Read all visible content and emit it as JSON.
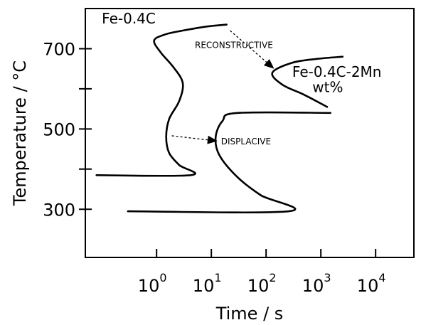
{
  "chart_data": {
    "type": "line",
    "xlabel": "Time / s",
    "ylabel": "Temperature / °C",
    "x_scale": "log",
    "xlim": [
      0.05,
      50000
    ],
    "ylim": [
      180,
      800
    ],
    "x_ticks": [
      {
        "value": 1,
        "base": "10",
        "exp": "0"
      },
      {
        "value": 10,
        "base": "10",
        "exp": "1"
      },
      {
        "value": 100,
        "base": "10",
        "exp": "2"
      },
      {
        "value": 1000,
        "base": "10",
        "exp": "3"
      },
      {
        "value": 10000,
        "base": "10",
        "exp": "4"
      }
    ],
    "y_ticks": [
      300,
      400,
      500,
      600,
      700
    ],
    "y_tick_labels": [
      {
        "value": 300,
        "label": "300"
      },
      {
        "value": 500,
        "label": "500"
      },
      {
        "value": 700,
        "label": "700"
      }
    ],
    "grid": false,
    "series": [
      {
        "name": "Fe-0.4C",
        "points": [
          [
            19,
            760
          ],
          [
            8,
            755
          ],
          [
            3,
            745
          ],
          [
            1.4,
            735
          ],
          [
            0.9,
            720
          ],
          [
            1.2,
            690
          ],
          [
            2.0,
            655
          ],
          [
            3.0,
            615
          ],
          [
            2.6,
            570
          ],
          [
            1.7,
            525
          ],
          [
            1.5,
            480
          ],
          [
            1.7,
            440
          ],
          [
            2.6,
            410
          ],
          [
            4.2,
            385
          ],
          [
            0.08,
            385
          ]
        ]
      },
      {
        "name": "Fe-0.4C-2Mn",
        "points": [
          [
            2500,
            680
          ],
          [
            900,
            675
          ],
          [
            300,
            665
          ],
          [
            130,
            640
          ],
          [
            200,
            610
          ],
          [
            500,
            585
          ],
          [
            1300,
            555
          ]
        ]
      },
      {
        "name": "",
        "points": [
          [
            1500,
            540
          ],
          [
            30,
            540
          ],
          [
            16,
            520
          ],
          [
            12,
            480
          ],
          [
            14,
            435
          ],
          [
            30,
            380
          ],
          [
            80,
            335
          ],
          [
            260,
            295
          ],
          [
            0.3,
            295
          ]
        ]
      }
    ],
    "annotations": [
      {
        "text": "Fe-0.4C",
        "x": 0.1,
        "y": 763
      },
      {
        "text": "RECONSTRUCTIVE",
        "x": 5,
        "y": 702
      },
      {
        "text": "Fe-0.4C-2Mn",
        "x": 300,
        "y": 630
      },
      {
        "text": "wt%",
        "x": 700,
        "y": 592
      },
      {
        "text": "DISPLACIVE",
        "x": 15,
        "y": 462
      }
    ],
    "arrows": [
      {
        "from": [
          22,
          745
        ],
        "to": [
          140,
          650
        ]
      },
      {
        "from": [
          1.9,
          483
        ],
        "to": [
          13,
          470
        ]
      }
    ]
  }
}
